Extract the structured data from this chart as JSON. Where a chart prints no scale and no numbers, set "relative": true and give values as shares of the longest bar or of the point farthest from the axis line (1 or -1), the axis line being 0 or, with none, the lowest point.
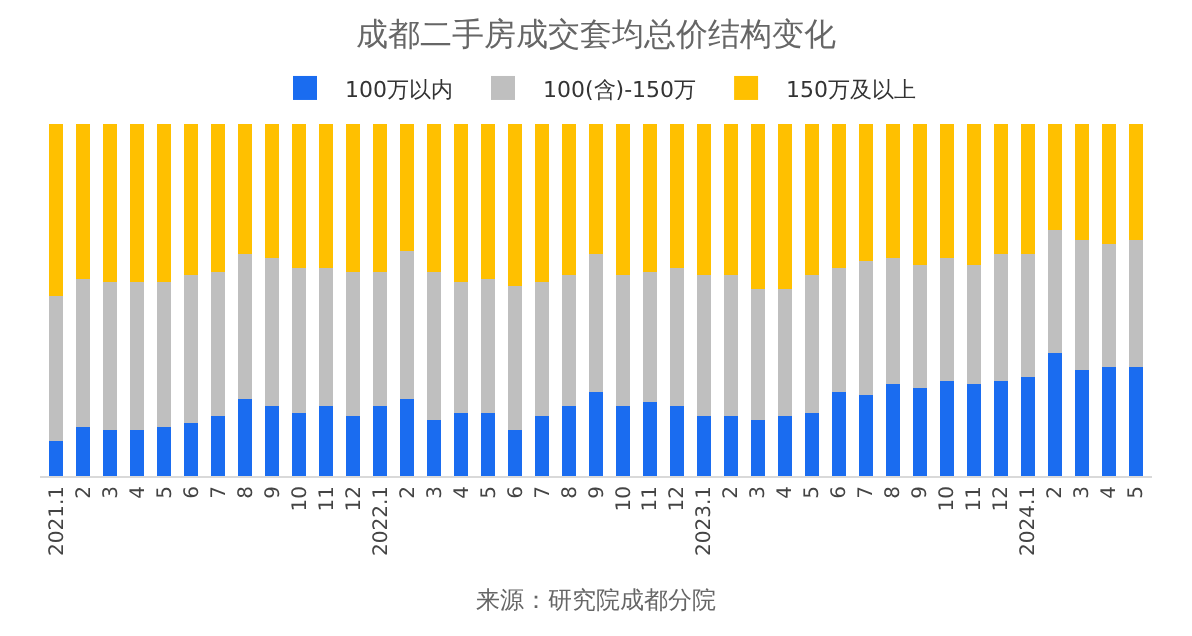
{
  "chart_data": {
    "type": "bar",
    "title": "成都二手房成交套均总价结构变化",
    "stacked": true,
    "relative": true,
    "legend": "top",
    "categories": [
      "2021.1",
      "2",
      "3",
      "4",
      "5",
      "6",
      "7",
      "8",
      "9",
      "10",
      "11",
      "12",
      "2022.1",
      "2",
      "3",
      "4",
      "5",
      "6",
      "7",
      "8",
      "9",
      "10",
      "11",
      "12",
      "2023.1",
      "2",
      "3",
      "4",
      "5",
      "6",
      "7",
      "8",
      "9",
      "10",
      "11",
      "12",
      "2024.1",
      "2",
      "3",
      "4",
      "5"
    ],
    "series": [
      {
        "name": "100万以内",
        "color": "#1a6cf0",
        "values": [
          0.1,
          0.14,
          0.13,
          0.13,
          0.14,
          0.15,
          0.17,
          0.22,
          0.2,
          0.18,
          0.2,
          0.17,
          0.2,
          0.22,
          0.16,
          0.18,
          0.18,
          0.13,
          0.17,
          0.2,
          0.24,
          0.2,
          0.21,
          0.2,
          0.17,
          0.17,
          0.16,
          0.17,
          0.18,
          0.24,
          0.23,
          0.26,
          0.25,
          0.27,
          0.26,
          0.27,
          0.28,
          0.35,
          0.3,
          0.31,
          0.31
        ]
      },
      {
        "name": "100(含)-150万",
        "color": "#bfbfbf",
        "values": [
          0.41,
          0.42,
          0.42,
          0.42,
          0.41,
          0.42,
          0.41,
          0.41,
          0.42,
          0.41,
          0.39,
          0.41,
          0.38,
          0.42,
          0.42,
          0.37,
          0.38,
          0.41,
          0.38,
          0.37,
          0.39,
          0.37,
          0.37,
          0.39,
          0.4,
          0.4,
          0.37,
          0.36,
          0.39,
          0.35,
          0.38,
          0.36,
          0.35,
          0.35,
          0.34,
          0.36,
          0.35,
          0.35,
          0.37,
          0.35,
          0.36
        ]
      },
      {
        "name": "150万及以上",
        "color": "#ffc000",
        "values": [
          0.49,
          0.44,
          0.45,
          0.45,
          0.45,
          0.43,
          0.42,
          0.37,
          0.38,
          0.41,
          0.41,
          0.42,
          0.42,
          0.36,
          0.42,
          0.45,
          0.44,
          0.46,
          0.45,
          0.43,
          0.37,
          0.43,
          0.42,
          0.41,
          0.43,
          0.43,
          0.47,
          0.47,
          0.43,
          0.41,
          0.39,
          0.38,
          0.4,
          0.38,
          0.4,
          0.37,
          0.37,
          0.3,
          0.33,
          0.34,
          0.33
        ]
      }
    ],
    "annotations": [
      "来源：研究院成都分院"
    ]
  }
}
